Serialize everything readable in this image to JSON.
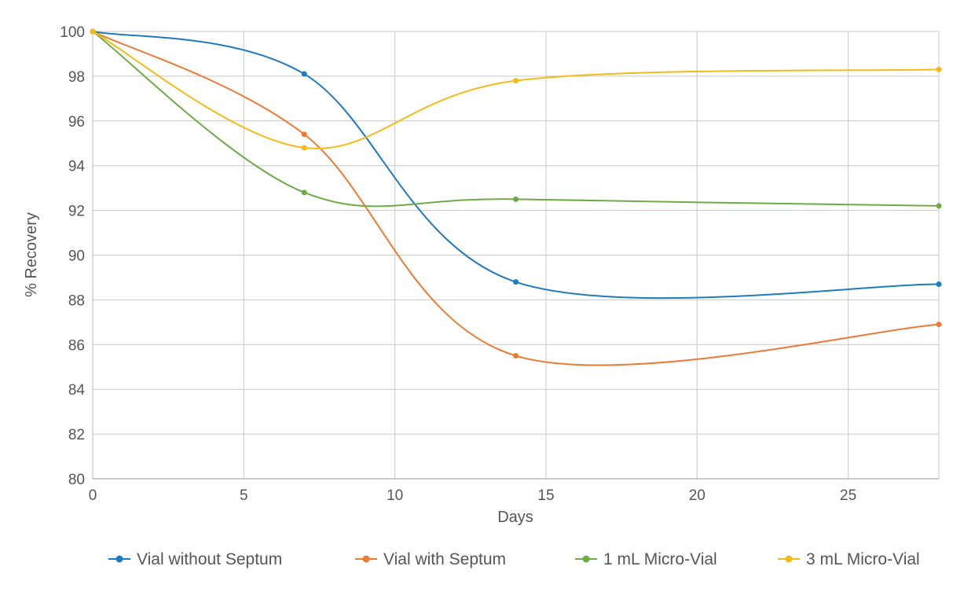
{
  "chart_data": {
    "type": "line",
    "title": "",
    "xlabel": "Days",
    "ylabel": "% Recovery",
    "xlim": [
      0,
      28
    ],
    "ylim": [
      80,
      100
    ],
    "x_ticks": [
      0,
      5,
      10,
      15,
      20,
      25
    ],
    "y_ticks": [
      80,
      82,
      84,
      86,
      88,
      90,
      92,
      94,
      96,
      98,
      100
    ],
    "grid": true,
    "legend_position": "bottom",
    "x": [
      0,
      7,
      14,
      28
    ],
    "series": [
      {
        "name": "Vial without Septum",
        "color": "#1f7ac0",
        "values": [
          100,
          98.1,
          88.8,
          88.7
        ]
      },
      {
        "name": "Vial with Septum",
        "color": "#ec7a34",
        "values": [
          100,
          95.4,
          85.5,
          86.9
        ]
      },
      {
        "name": "1 mL Micro-Vial",
        "color": "#6fab45",
        "values": [
          100,
          92.8,
          92.5,
          92.2
        ]
      },
      {
        "name": "3 mL Micro-Vial",
        "color": "#f2bb17",
        "values": [
          100,
          94.8,
          97.8,
          98.3
        ]
      }
    ]
  }
}
